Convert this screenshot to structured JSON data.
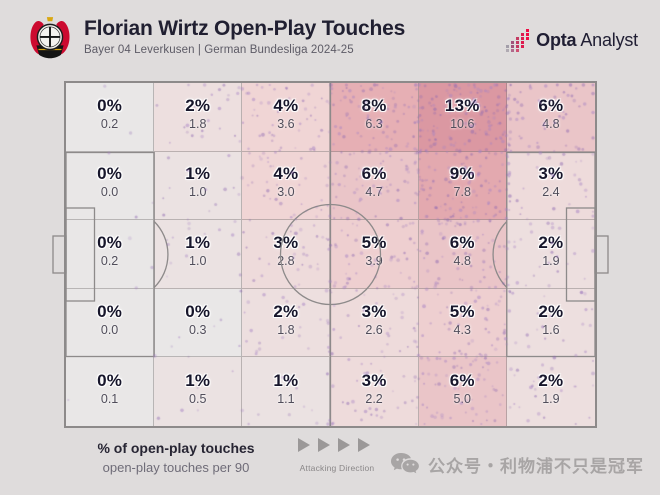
{
  "header": {
    "title": "Florian Wirtz Open-Play Touches",
    "subtitle": "Bayer 04 Leverkusen | German Bundesliga 2024-25",
    "club_logo": "bayer-04-leverkusen-crest",
    "brand": {
      "name_bold": "Opta",
      "name_regular": "Analyst"
    }
  },
  "chart_data": {
    "type": "heatmap",
    "title": "Florian Wirtz Open-Play Touches",
    "subtitle": "Bayer 04 Leverkusen | German Bundesliga 2024-25",
    "grid": {
      "rows": 5,
      "cols": 6
    },
    "pct_labels": [
      [
        "0%",
        "2%",
        "4%",
        "8%",
        "13%",
        "6%"
      ],
      [
        "0%",
        "1%",
        "4%",
        "6%",
        "9%",
        "3%"
      ],
      [
        "0%",
        "1%",
        "3%",
        "5%",
        "6%",
        "2%"
      ],
      [
        "0%",
        "0%",
        "2%",
        "3%",
        "5%",
        "2%"
      ],
      [
        "0%",
        "1%",
        "1%",
        "3%",
        "6%",
        "2%"
      ]
    ],
    "per90_labels": [
      [
        "0.2",
        "1.8",
        "3.6",
        "6.3",
        "10.6",
        "4.8"
      ],
      [
        "0.0",
        "1.0",
        "3.0",
        "4.7",
        "7.8",
        "2.4"
      ],
      [
        "0.2",
        "1.0",
        "2.8",
        "3.9",
        "4.8",
        "1.9"
      ],
      [
        "0.0",
        "0.3",
        "1.8",
        "2.6",
        "4.3",
        "1.6"
      ],
      [
        "0.1",
        "0.5",
        "1.1",
        "2.2",
        "5.0",
        "1.9"
      ]
    ],
    "pct_values": [
      [
        0,
        2,
        4,
        8,
        13,
        6
      ],
      [
        0,
        1,
        4,
        6,
        9,
        3
      ],
      [
        0,
        1,
        3,
        5,
        6,
        2
      ],
      [
        0,
        0,
        2,
        3,
        5,
        2
      ],
      [
        0,
        1,
        1,
        3,
        6,
        2
      ]
    ],
    "per90_values": [
      [
        0.2,
        1.8,
        3.6,
        6.3,
        10.6,
        4.8
      ],
      [
        0.0,
        1.0,
        3.0,
        4.7,
        7.8,
        2.4
      ],
      [
        0.2,
        1.0,
        2.8,
        3.9,
        4.8,
        1.9
      ],
      [
        0.0,
        0.3,
        1.8,
        2.6,
        4.3,
        1.6
      ],
      [
        0.1,
        0.5,
        1.1,
        2.2,
        5.0,
        1.9
      ]
    ],
    "heat_colors_by_pct": {
      "0": "#e9e7e7",
      "1": "#ebe2e2",
      "2": "#eddfdf",
      "3": "#eedbdb",
      "4": "#f0d5d5",
      "5": "#eecfd0",
      "6": "#eac5c8",
      "8": "#e6afb4",
      "9": "#e3a9af",
      "13": "#db98a2"
    },
    "dot_colors": [
      "#8f6ab2",
      "#a783c4"
    ],
    "pitch_line_color": "#8d8a8a"
  },
  "legend": {
    "line1": "% of open-play touches",
    "line2": "open-play touches per 90"
  },
  "attacking_direction": {
    "label": "Attacking Direction",
    "arrow_count": 4
  },
  "watermark": {
    "icon": "wechat-icon",
    "text": "公众号・利物浦不只是冠军"
  }
}
